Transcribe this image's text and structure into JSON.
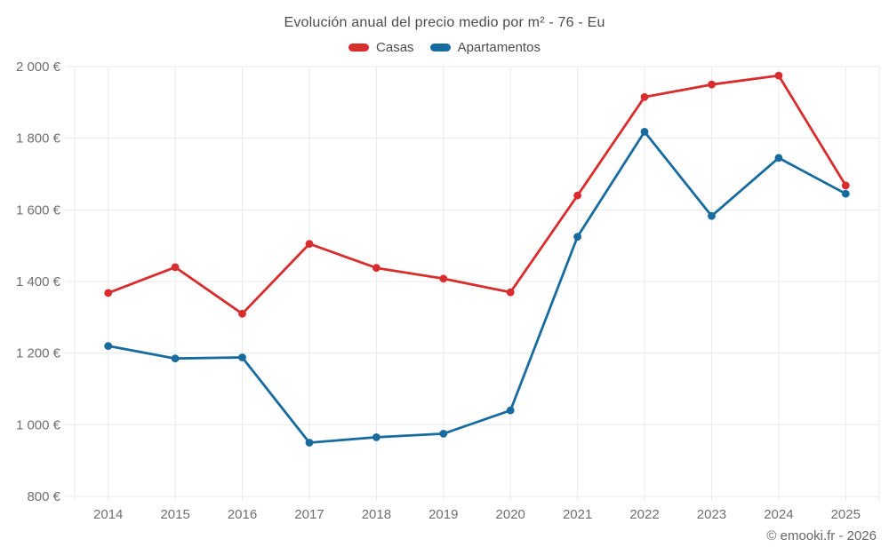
{
  "title": "Evolución anual del precio medio por m² - 76 - Eu",
  "watermark": "© emooki.fr - 2026",
  "chart_data": {
    "type": "line",
    "title": "Evolución anual del precio medio por m² - 76 - Eu",
    "categories": [
      "2014",
      "2015",
      "2016",
      "2017",
      "2018",
      "2019",
      "2020",
      "2021",
      "2022",
      "2023",
      "2024",
      "2025"
    ],
    "series": [
      {
        "name": "Casas",
        "color": "#d92c2c",
        "values": [
          1368,
          1440,
          1310,
          1505,
          1438,
          1408,
          1370,
          1640,
          1915,
          1950,
          1975,
          1668
        ]
      },
      {
        "name": "Apartamentos",
        "color": "#176b9f",
        "values": [
          1220,
          1185,
          1188,
          950,
          965,
          975,
          1040,
          1525,
          1818,
          1583,
          1745,
          1645
        ]
      }
    ],
    "xlabel": "",
    "ylabel": "",
    "ylim": [
      800,
      2000
    ],
    "yticks": [
      {
        "value": 800,
        "label": "800 €"
      },
      {
        "value": 1000,
        "label": "1 000 €"
      },
      {
        "value": 1200,
        "label": "1 200 €"
      },
      {
        "value": 1400,
        "label": "1 400 €"
      },
      {
        "value": 1600,
        "label": "1 600 €"
      },
      {
        "value": 1800,
        "label": "1 800 €"
      },
      {
        "value": 2000,
        "label": "2 000 €"
      }
    ],
    "grid": true,
    "legend_position": "top",
    "marker": "circle"
  },
  "style": {
    "grid_color": "#e9e9e9",
    "tick_label_color": "#6f6f6f",
    "title_color": "#4c4c4c",
    "background": "#ffffff"
  }
}
